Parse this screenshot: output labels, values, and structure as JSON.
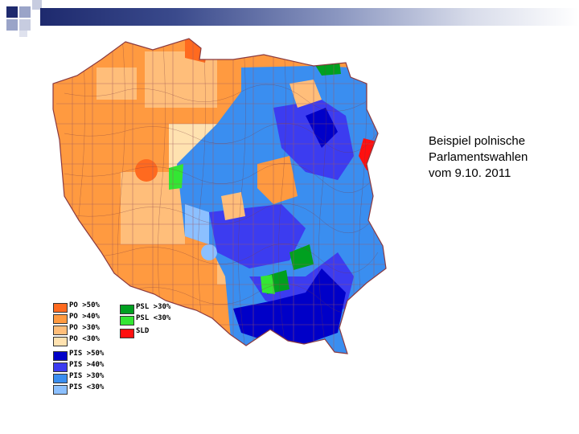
{
  "caption": {
    "line1": "Beispiel polnische",
    "line2": "Parlamentswahlen",
    "line3": "vom 9.10. 2011"
  },
  "legend": [
    {
      "label": "PO >50%",
      "color": "#ff6a1f"
    },
    {
      "label": "PO >40%",
      "color": "#ff9a40"
    },
    {
      "label": "PO >30%",
      "color": "#ffbe7a"
    },
    {
      "label": "PO <30%",
      "color": "#ffe2b0"
    },
    {
      "label": "PIS >50%",
      "color": "#0000c8"
    },
    {
      "label": "PIS >40%",
      "color": "#3c3cf0"
    },
    {
      "label": "PIS >30%",
      "color": "#3a8ef0"
    },
    {
      "label": "PIS <30%",
      "color": "#8cc0ff"
    },
    {
      "label": "PSL >30%",
      "color": "#00a020"
    },
    {
      "label": "PSL <30%",
      "color": "#33e633"
    },
    {
      "label": "SLD",
      "color": "#ff1010"
    }
  ],
  "colors": {
    "header_dark": "#1e2a6e",
    "border": "#a05a60"
  }
}
